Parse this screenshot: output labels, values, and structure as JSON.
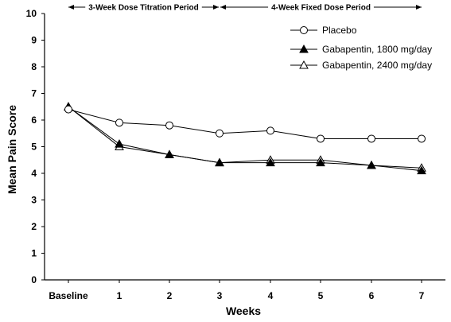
{
  "chart_data": {
    "type": "line",
    "xlabel": "Weeks",
    "ylabel": "Mean Pain Score",
    "categories": [
      "Baseline",
      "1",
      "2",
      "3",
      "4",
      "5",
      "6",
      "7"
    ],
    "ylim": [
      0,
      10
    ],
    "yticks": [
      "0",
      "1",
      "2",
      "3",
      "4",
      "5",
      "6",
      "7",
      "8",
      "9",
      "10"
    ],
    "periods": [
      {
        "label": "3-Week Dose Titration Period",
        "from": "Baseline",
        "to": "3"
      },
      {
        "label": "4-Week Fixed Dose Period",
        "from": "3",
        "to": "7"
      }
    ],
    "legend_position": "top-right",
    "series": [
      {
        "name": "Placebo",
        "marker": "open-circle",
        "values": [
          6.4,
          5.9,
          5.8,
          5.5,
          5.6,
          5.3,
          5.3,
          5.3
        ]
      },
      {
        "name": "Gabapentin, 1800 mg/day",
        "marker": "filled-triangle",
        "values": [
          6.5,
          5.1,
          4.7,
          4.4,
          4.4,
          4.4,
          4.3,
          4.1
        ]
      },
      {
        "name": "Gabapentin, 2400 mg/day",
        "marker": "open-triangle",
        "values": [
          6.5,
          5.0,
          4.7,
          4.4,
          4.5,
          4.5,
          4.3,
          4.2
        ]
      }
    ]
  }
}
